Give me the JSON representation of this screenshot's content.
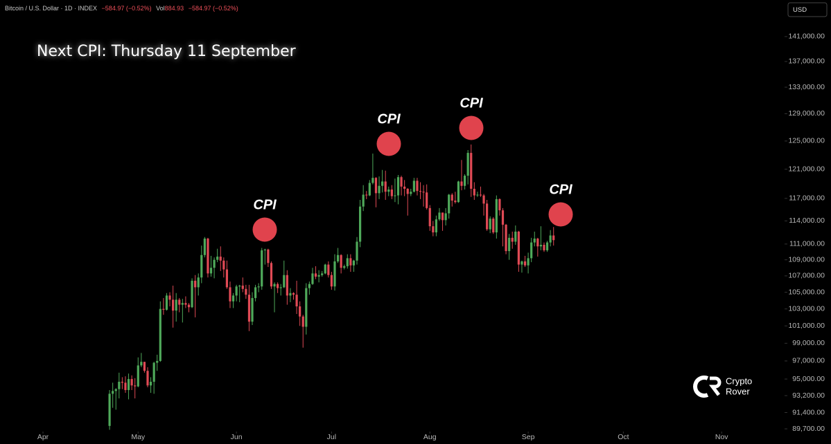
{
  "chart_data": {
    "type": "candlestick",
    "symbol": "Bitcoin / U.S. Dollar · 1D · INDEX",
    "change": "−584.97 (−0.52%)",
    "volume_label": "Vol",
    "volume": "884.93",
    "volume_change": "−584.97 (−0.52%)",
    "currency": "USD",
    "title": "Next CPI: Thursday 11 September",
    "annotations": [
      "CPI",
      "CPI",
      "CPI",
      "CPI"
    ],
    "brand": [
      "Crypto",
      "Rover"
    ],
    "up_color": "#4fa95a",
    "down_color": "#e04a55",
    "event_color": "#e0434d",
    "log_scale": true,
    "xlim": [
      77.45,
      324.4
    ],
    "xticks": [
      {
        "value": 91,
        "label": "Apr"
      },
      {
        "value": 121,
        "label": "May"
      },
      {
        "value": 152,
        "label": "Jun"
      },
      {
        "value": 182,
        "label": "Jul"
      },
      {
        "value": 213,
        "label": "Aug"
      },
      {
        "value": 244,
        "label": "Sep"
      },
      {
        "value": 274,
        "label": "Oct"
      },
      {
        "value": 305,
        "label": "Nov"
      }
    ],
    "ylim": [
      89560,
      147070
    ],
    "yticks": [
      {
        "value": 89700,
        "label": "89,700.00"
      },
      {
        "value": 91400,
        "label": "91,400.00"
      },
      {
        "value": 93200,
        "label": "93,200.00"
      },
      {
        "value": 95000,
        "label": "95,000.00"
      },
      {
        "value": 97000,
        "label": "97,000.00"
      },
      {
        "value": 99000,
        "label": "99,000.00"
      },
      {
        "value": 101000,
        "label": "101,000.00"
      },
      {
        "value": 103000,
        "label": "103,000.00"
      },
      {
        "value": 105000,
        "label": "105,000.00"
      },
      {
        "value": 107000,
        "label": "107,000.00"
      },
      {
        "value": 109000,
        "label": "109,000.00"
      },
      {
        "value": 111000,
        "label": "111,000.00"
      },
      {
        "value": 114000,
        "label": "114,000.00"
      },
      {
        "value": 117000,
        "label": "117,000.00"
      },
      {
        "value": 121000,
        "label": "121,000.00"
      },
      {
        "value": 125000,
        "label": "125,000.00"
      },
      {
        "value": 129000,
        "label": "129,000.00"
      },
      {
        "value": 133000,
        "label": "133,000.00"
      },
      {
        "value": 137000,
        "label": "137,000.00"
      },
      {
        "value": 141000,
        "label": "141,000.00"
      }
    ],
    "x": [
      112,
      113,
      114,
      115,
      116,
      117,
      118,
      119,
      120,
      121,
      122,
      123,
      124,
      125,
      126,
      127,
      128,
      129,
      130,
      131,
      132,
      133,
      134,
      135,
      136,
      137,
      138,
      139,
      140,
      141,
      142,
      143,
      144,
      145,
      146,
      147,
      148,
      149,
      150,
      151,
      152,
      153,
      154,
      155,
      156,
      157,
      158,
      159,
      160,
      161,
      162,
      163,
      164,
      165,
      166,
      167,
      168,
      169,
      170,
      171,
      172,
      173,
      174,
      175,
      176,
      177,
      178,
      179,
      180,
      181,
      182,
      183,
      184,
      185,
      186,
      187,
      188,
      189,
      190,
      191,
      192,
      193,
      194,
      195,
      196,
      197,
      198,
      199,
      200,
      201,
      202,
      203,
      204,
      205,
      206,
      207,
      208,
      209,
      210,
      211,
      212,
      213,
      214,
      215,
      216,
      217,
      218,
      219,
      220,
      221,
      222,
      223,
      224,
      225,
      226,
      227,
      228,
      229,
      230,
      231,
      232,
      233,
      234,
      235,
      236,
      237,
      238,
      239,
      240,
      241,
      242,
      243,
      244,
      245,
      246,
      247,
      248,
      249,
      250,
      251,
      252
    ],
    "open": [
      90000,
      93400,
      93700,
      93900,
      94700,
      94600,
      93800,
      95000,
      94300,
      94200,
      96500,
      96900,
      95900,
      94300,
      94700,
      96800,
      97000,
      103000,
      102900,
      104600,
      104100,
      102800,
      104100,
      103500,
      103700,
      103500,
      103200,
      106400,
      105600,
      106800,
      109600,
      111700,
      107300,
      108000,
      109000,
      109400,
      108900,
      107800,
      105600,
      103900,
      104600,
      105700,
      105800,
      105400,
      104700,
      101500,
      104300,
      105600,
      105700,
      110200,
      110300,
      108600,
      105700,
      106000,
      105500,
      105600,
      107100,
      104600,
      104900,
      104700,
      103300,
      102100,
      100900,
      105500,
      106000,
      107300,
      106900,
      107100,
      107300,
      108400,
      107100,
      105700,
      108800,
      109600,
      108000,
      108200,
      109200,
      108300,
      108900,
      111300,
      115900,
      117500,
      117400,
      119100,
      119800,
      117700,
      118700,
      119300,
      117900,
      118200,
      117300,
      117400,
      119900,
      118600,
      118300,
      117600,
      117900,
      119400,
      118000,
      117900,
      117800,
      115700,
      113300,
      112500,
      114200,
      115100,
      114100,
      115000,
      117500,
      116700,
      116500,
      119300,
      118700,
      120100,
      123300,
      118300,
      117400,
      117500,
      117400,
      116300,
      112900,
      114300,
      112500,
      116900,
      115400,
      113500,
      110100,
      111800,
      111300,
      112600,
      108400,
      108800,
      108300,
      109200,
      111200,
      111700,
      110700,
      110900,
      110200,
      111200,
      112100
    ],
    "high": [
      93800,
      94600,
      94000,
      95700,
      95200,
      95300,
      95600,
      95400,
      95100,
      97400,
      97900,
      96900,
      96300,
      95200,
      96900,
      97700,
      103900,
      104300,
      104900,
      105000,
      105800,
      104900,
      104300,
      104200,
      104500,
      103700,
      106700,
      107100,
      107300,
      110800,
      111900,
      111800,
      109500,
      109300,
      110400,
      110700,
      109300,
      108900,
      106300,
      104900,
      105900,
      105900,
      106800,
      105900,
      105900,
      105000,
      105900,
      106100,
      110500,
      110400,
      110400,
      108800,
      106200,
      106200,
      106000,
      108900,
      107700,
      105500,
      105000,
      106400,
      103900,
      102300,
      106100,
      106300,
      108000,
      108200,
      107700,
      107600,
      108500,
      108800,
      107500,
      109700,
      110500,
      109700,
      108400,
      109700,
      109700,
      109000,
      111900,
      116800,
      118800,
      118000,
      119500,
      123200,
      119900,
      120000,
      120900,
      120800,
      118600,
      118800,
      119700,
      120200,
      120100,
      119500,
      118400,
      118300,
      119800,
      119800,
      119200,
      118800,
      118900,
      116100,
      114000,
      114700,
      115700,
      115100,
      115700,
      117600,
      117700,
      117900,
      119400,
      122300,
      120300,
      123700,
      124500,
      119200,
      117900,
      118600,
      117600,
      116800,
      114600,
      114500,
      117400,
      117000,
      115700,
      113600,
      112300,
      112600,
      113400,
      112700,
      108900,
      109500,
      109900,
      111800,
      112600,
      111800,
      113300,
      111200,
      111400,
      112800,
      113200
    ],
    "low": [
      89600,
      91900,
      91700,
      92900,
      93900,
      93500,
      92800,
      93800,
      92900,
      94100,
      96300,
      95700,
      94100,
      93500,
      93400,
      95900,
      96900,
      102300,
      102800,
      103300,
      100800,
      101500,
      102600,
      101400,
      103100,
      102600,
      103100,
      102000,
      104600,
      106100,
      109300,
      106800,
      106900,
      106700,
      108700,
      107600,
      106800,
      105400,
      103100,
      103100,
      103900,
      103800,
      105000,
      104200,
      100400,
      101100,
      103900,
      105000,
      105300,
      108400,
      108100,
      105400,
      102600,
      104900,
      104600,
      105500,
      103500,
      103800,
      104100,
      102400,
      101000,
      98500,
      100000,
      104700,
      105900,
      106600,
      106200,
      106900,
      107200,
      106800,
      105300,
      105200,
      108600,
      107300,
      107800,
      107900,
      107500,
      107500,
      108400,
      110600,
      115300,
      116900,
      117300,
      118900,
      115800,
      116900,
      117800,
      116800,
      117300,
      116900,
      116500,
      116200,
      117400,
      117300,
      114700,
      117300,
      117800,
      117400,
      116900,
      115900,
      115500,
      112700,
      112000,
      112000,
      114000,
      112700,
      113400,
      114300,
      115900,
      116300,
      116400,
      118100,
      118200,
      118900,
      117200,
      116800,
      117200,
      117200,
      114700,
      112700,
      112400,
      112300,
      111700,
      114700,
      110700,
      109700,
      109000,
      110400,
      110900,
      107500,
      107400,
      108100,
      107300,
      108700,
      110700,
      109400,
      110200,
      110000,
      110000,
      110700,
      110800
    ],
    "close": [
      93400,
      93700,
      93900,
      94700,
      94600,
      93800,
      95000,
      94300,
      94200,
      96500,
      96900,
      95900,
      94300,
      94700,
      96800,
      97000,
      103000,
      102900,
      104600,
      104100,
      102800,
      104100,
      103500,
      103700,
      103500,
      103200,
      106400,
      105600,
      106800,
      109600,
      111700,
      107300,
      108000,
      109000,
      109400,
      108900,
      107800,
      105600,
      103900,
      104600,
      105700,
      105800,
      105400,
      104700,
      101500,
      104300,
      105600,
      105700,
      110200,
      110300,
      108600,
      105700,
      106000,
      105500,
      105600,
      107100,
      104600,
      104900,
      104700,
      103300,
      102100,
      100900,
      105500,
      106000,
      107300,
      106900,
      107100,
      107300,
      108400,
      107100,
      105700,
      108800,
      109600,
      108000,
      108200,
      109200,
      108300,
      108900,
      111300,
      115900,
      117500,
      117400,
      119100,
      119800,
      117700,
      118700,
      119300,
      117900,
      118200,
      117300,
      117400,
      119900,
      118600,
      118300,
      117600,
      117900,
      119400,
      118000,
      117900,
      117800,
      115700,
      113300,
      112500,
      114200,
      115100,
      114100,
      115000,
      117500,
      116700,
      116500,
      119300,
      118700,
      120100,
      123300,
      118300,
      117400,
      117500,
      117400,
      116300,
      112900,
      114300,
      112500,
      116900,
      115400,
      113500,
      110100,
      111800,
      111300,
      112600,
      108400,
      108800,
      108300,
      109200,
      111200,
      111700,
      110700,
      110900,
      110200,
      111200,
      112100,
      111500
    ]
  }
}
